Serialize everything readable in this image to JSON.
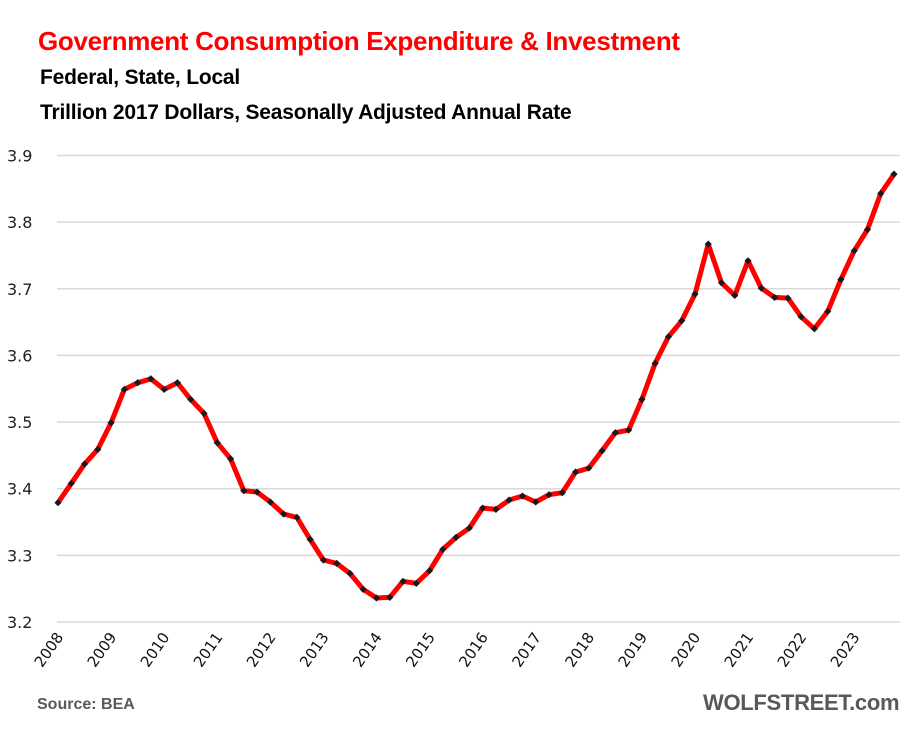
{
  "chart_data": {
    "type": "line",
    "title": "Government Consumption Expenditure & Investment",
    "subtitle": [
      "Federal, State, Local",
      "Trillion 2017 Dollars, Seasonally Adjusted Annual Rate"
    ],
    "xlabel": "",
    "ylabel": "",
    "ylim": [
      3.2,
      3.9
    ],
    "yticks": [
      "3.2",
      "3.3",
      "3.4",
      "3.5",
      "3.6",
      "3.7",
      "3.8",
      "3.9"
    ],
    "xticks": [
      "2008",
      "2009",
      "2010",
      "2011",
      "2012",
      "2013",
      "2014",
      "2015",
      "2016",
      "2017",
      "2018",
      "2019",
      "2020",
      "2021",
      "2022",
      "2023"
    ],
    "x_start": "2008 Q1",
    "frequency": "quarterly",
    "grid": true,
    "legend": "none",
    "series": [
      {
        "name": "Government Consumption Expenditure & Investment",
        "color": "#ff0000",
        "marker_color": "#1a1a1a",
        "values": [
          3.379,
          3.408,
          3.437,
          3.459,
          3.499,
          3.549,
          3.559,
          3.565,
          3.549,
          3.559,
          3.534,
          3.513,
          3.469,
          3.445,
          3.397,
          3.395,
          3.38,
          3.362,
          3.357,
          3.324,
          3.293,
          3.288,
          3.273,
          3.249,
          3.236,
          3.237,
          3.261,
          3.258,
          3.277,
          3.309,
          3.327,
          3.341,
          3.371,
          3.369,
          3.383,
          3.389,
          3.38,
          3.391,
          3.394,
          3.425,
          3.431,
          3.457,
          3.484,
          3.488,
          3.534,
          3.588,
          3.628,
          3.652,
          3.692,
          3.767,
          3.709,
          3.69,
          3.742,
          3.701,
          3.687,
          3.686,
          3.658,
          3.64,
          3.666,
          3.714,
          3.757,
          3.789,
          3.843,
          3.872
        ]
      }
    ]
  },
  "footer": {
    "source": "Source: BEA",
    "brand": "WOLFSTREET.com"
  },
  "colors": {
    "title": "#ff0000",
    "line": "#ff0000",
    "markers": "#1a1a1a",
    "grid": "#d9d9d9",
    "footer_text": "#595959"
  }
}
